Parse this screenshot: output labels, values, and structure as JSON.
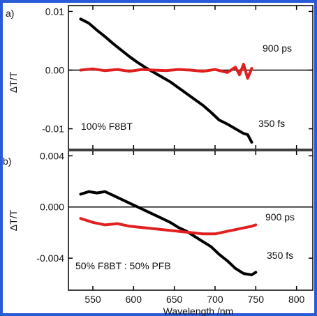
{
  "frame_color": "#2a5bd7",
  "chart_data": [
    {
      "type": "line",
      "panel_label": "a)",
      "ylabel": "ΔT/T",
      "xlabel": "",
      "xlim": [
        520,
        820
      ],
      "ylim": [
        -0.0135,
        0.011
      ],
      "y_ticks": [
        0.01,
        0.0,
        -0.01
      ],
      "y_tick_labels": [
        "0.01",
        "0.00",
        "-0.01"
      ],
      "x_ticks": [
        550,
        600,
        650,
        700,
        750,
        800
      ],
      "zero_line": true,
      "annotations": [
        "900 ps",
        "350 fs",
        "100% F8BT"
      ],
      "series": [
        {
          "label": "350 fs",
          "color": "#000000",
          "x": [
            535,
            545,
            555,
            565,
            575,
            585,
            595,
            605,
            615,
            625,
            635,
            645,
            655,
            665,
            675,
            685,
            695,
            705,
            715,
            725,
            735,
            740,
            745
          ],
          "y": [
            0.0087,
            0.008,
            0.0068,
            0.0057,
            0.0045,
            0.0034,
            0.0023,
            0.0013,
            0.0004,
            -0.0004,
            -0.0012,
            -0.002,
            -0.003,
            -0.004,
            -0.005,
            -0.006,
            -0.0072,
            -0.0085,
            -0.0092,
            -0.01,
            -0.0108,
            -0.011,
            -0.0123
          ]
        },
        {
          "label": "900 ps",
          "color": "#e02020",
          "x": [
            535,
            550,
            565,
            580,
            595,
            610,
            625,
            640,
            655,
            670,
            685,
            700,
            715,
            725,
            730,
            735,
            740,
            745
          ],
          "y": [
            0.0,
            0.0002,
            -0.0001,
            0.0001,
            -0.0002,
            0.0001,
            0.0,
            -0.0001,
            0.0001,
            0.0,
            -0.0002,
            0.0001,
            -0.0004,
            0.0005,
            -0.0008,
            0.001,
            -0.0014,
            0.0003
          ]
        }
      ]
    },
    {
      "type": "line",
      "panel_label": "b)",
      "ylabel": "ΔT/T",
      "xlabel": "Wavelength /nm",
      "xlim": [
        520,
        820
      ],
      "ylim": [
        -0.0065,
        0.0044
      ],
      "y_ticks": [
        0.004,
        0.0,
        -0.004
      ],
      "y_tick_labels": [
        "0.004",
        "0.000",
        "-0.004"
      ],
      "x_ticks": [
        550,
        600,
        650,
        700,
        750,
        800
      ],
      "x_tick_labels": [
        "550",
        "600",
        "650",
        "700",
        "750",
        "800"
      ],
      "zero_line": true,
      "annotations": [
        "900 ps",
        "350 fs",
        "50% F8BT : 50% PFB"
      ],
      "series": [
        {
          "label": "350 fs",
          "color": "#000000",
          "x": [
            535,
            545,
            555,
            565,
            575,
            585,
            595,
            605,
            615,
            625,
            635,
            645,
            655,
            665,
            675,
            685,
            695,
            705,
            715,
            725,
            735,
            745,
            750
          ],
          "y": [
            0.001,
            0.0012,
            0.0011,
            0.0012,
            0.0009,
            0.0006,
            0.0003,
            0.0,
            -0.0003,
            -0.0006,
            -0.0009,
            -0.0012,
            -0.0016,
            -0.0019,
            -0.0023,
            -0.0027,
            -0.0031,
            -0.0037,
            -0.0042,
            -0.0048,
            -0.0052,
            -0.0053,
            -0.0051
          ]
        },
        {
          "label": "900 ps",
          "color": "#e02020",
          "x": [
            535,
            550,
            565,
            580,
            595,
            610,
            625,
            640,
            655,
            670,
            685,
            700,
            715,
            730,
            745,
            750
          ],
          "y": [
            -0.0009,
            -0.0012,
            -0.0014,
            -0.0013,
            -0.0015,
            -0.0016,
            -0.0017,
            -0.0018,
            -0.0019,
            -0.002,
            -0.0021,
            -0.0021,
            -0.0019,
            -0.0017,
            -0.0015,
            -0.0014
          ]
        }
      ]
    }
  ]
}
